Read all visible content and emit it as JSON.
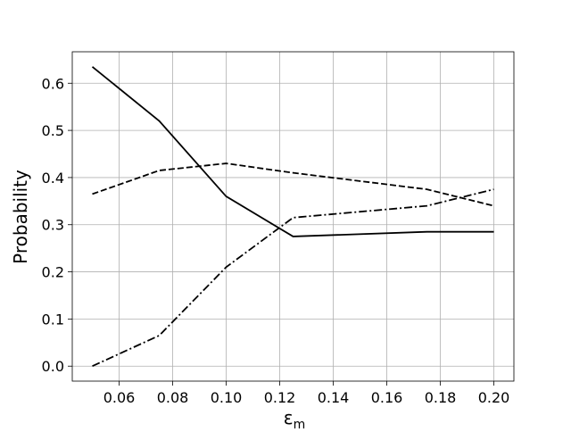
{
  "chart_data": {
    "type": "line",
    "x_label": "ε",
    "x_label_subscript": "m",
    "y_label": "Probability",
    "x": [
      0.05,
      0.075,
      0.1,
      0.125,
      0.175,
      0.2
    ],
    "series": [
      {
        "color": "#000000",
        "dash": "solid",
        "values": [
          0.635,
          0.52,
          0.36,
          0.275,
          0.285,
          0.285
        ]
      },
      {
        "color": "#000000",
        "dash": "dashed",
        "values": [
          0.365,
          0.415,
          0.43,
          0.41,
          0.375,
          0.34
        ]
      },
      {
        "color": "#000000",
        "dash": "dashdot",
        "values": [
          0.0,
          0.065,
          0.21,
          0.315,
          0.34,
          0.375
        ]
      }
    ],
    "xlim": [
      0.0425,
      0.2075
    ],
    "ylim": [
      -0.03175,
      0.66675
    ],
    "xticks": [
      0.06,
      0.08,
      {
        "value": 0.1,
        "label": "0.10"
      },
      0.12,
      0.14,
      0.16,
      0.18,
      {
        "value": 0.2,
        "label": "0.20"
      }
    ],
    "yticks": [
      {
        "value": 0,
        "label": "0.0"
      },
      0.1,
      0.2,
      0.3,
      0.4,
      0.5,
      0.6
    ],
    "grid": true
  }
}
